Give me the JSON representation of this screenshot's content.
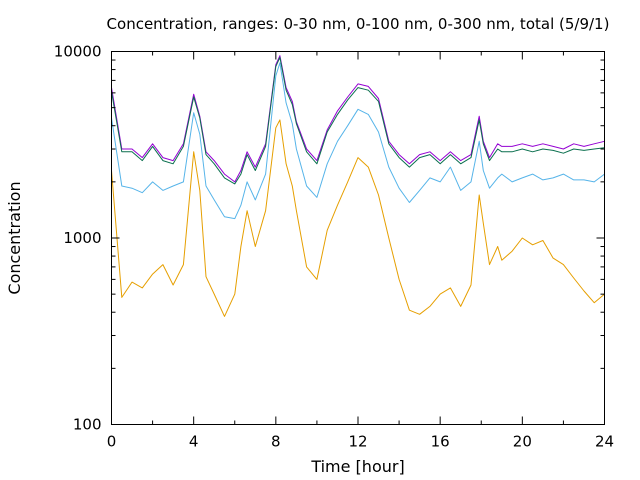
{
  "chart_data": {
    "type": "line",
    "title": "Concentration, ranges: 0-30 nm, 0-100 nm, 0-300 nm, total (5/9/1)",
    "xlabel": "Time [hour]",
    "ylabel": "Concentration",
    "xlim": [
      0,
      24
    ],
    "ylim": [
      100,
      10000
    ],
    "yscale": "log",
    "x_ticks": [
      0,
      4,
      8,
      12,
      16,
      20,
      24
    ],
    "x_tick_labels": [
      "0",
      "4",
      "8",
      "12",
      "16",
      "20",
      "24"
    ],
    "y_ticks": [
      100,
      1000,
      10000
    ],
    "y_tick_labels": [
      "100",
      "1000",
      "10000"
    ],
    "grid": false,
    "legend": "none",
    "x": [
      0,
      0.5,
      1,
      1.5,
      2,
      2.5,
      3,
      3.5,
      4,
      4.3,
      4.6,
      5,
      5.5,
      6,
      6.3,
      6.6,
      7,
      7.5,
      8,
      8.2,
      8.5,
      8.8,
      9,
      9.5,
      10,
      10.5,
      11,
      11.5,
      12,
      12.5,
      13,
      13.5,
      14,
      14.5,
      15,
      15.5,
      16,
      16.5,
      17,
      17.5,
      17.9,
      18.1,
      18.4,
      18.8,
      19,
      19.5,
      20,
      20.5,
      21,
      21.5,
      22,
      22.5,
      23,
      23.5,
      24
    ],
    "series": [
      {
        "color": "#9400d3",
        "values": [
          6400,
          3000,
          3000,
          2700,
          3200,
          2700,
          2600,
          3200,
          5900,
          4500,
          2900,
          2600,
          2200,
          2000,
          2300,
          2900,
          2400,
          3200,
          8500,
          9500,
          6400,
          5400,
          4200,
          3000,
          2600,
          3800,
          4800,
          5700,
          6700,
          6500,
          5600,
          3300,
          2800,
          2500,
          2800,
          2900,
          2600,
          2900,
          2600,
          2800,
          4500,
          3300,
          2700,
          3200,
          3100,
          3100,
          3200,
          3100,
          3200,
          3100,
          3000,
          3200,
          3100,
          3200,
          3300
        ]
      },
      {
        "color": "#0a6f4e",
        "values": [
          6100,
          2900,
          2900,
          2600,
          3100,
          2600,
          2500,
          3100,
          5700,
          4400,
          2800,
          2500,
          2100,
          1950,
          2200,
          2800,
          2300,
          3100,
          8300,
          9300,
          6200,
          5200,
          4100,
          2900,
          2500,
          3700,
          4600,
          5500,
          6400,
          6200,
          5400,
          3200,
          2700,
          2400,
          2700,
          2800,
          2500,
          2800,
          2500,
          2700,
          4300,
          3200,
          2600,
          3000,
          2900,
          2900,
          3000,
          2900,
          3000,
          2950,
          2850,
          3000,
          2950,
          3000,
          3050
        ]
      },
      {
        "color": "#56b4e9",
        "values": [
          4400,
          1900,
          1850,
          1750,
          2000,
          1800,
          1900,
          2000,
          4700,
          3600,
          1900,
          1600,
          1300,
          1270,
          1500,
          2000,
          1600,
          2200,
          7400,
          8700,
          5300,
          4100,
          3000,
          1900,
          1650,
          2500,
          3300,
          4000,
          4900,
          4600,
          3700,
          2400,
          1850,
          1550,
          1800,
          2100,
          2000,
          2400,
          1800,
          2000,
          3300,
          2300,
          1850,
          2100,
          2200,
          2000,
          2100,
          2200,
          2050,
          2100,
          2200,
          2050,
          2050,
          2000,
          2200
        ]
      },
      {
        "color": "#e69f00",
        "values": [
          2300,
          480,
          580,
          540,
          640,
          720,
          560,
          720,
          2900,
          1800,
          620,
          500,
          380,
          500,
          900,
          1400,
          900,
          1400,
          3900,
          4300,
          2500,
          1900,
          1400,
          700,
          600,
          1100,
          1500,
          2000,
          2700,
          2400,
          1700,
          1000,
          600,
          410,
          390,
          430,
          500,
          540,
          430,
          560,
          1700,
          1200,
          720,
          900,
          760,
          850,
          1000,
          920,
          970,
          780,
          720,
          610,
          520,
          450,
          500
        ]
      }
    ]
  }
}
